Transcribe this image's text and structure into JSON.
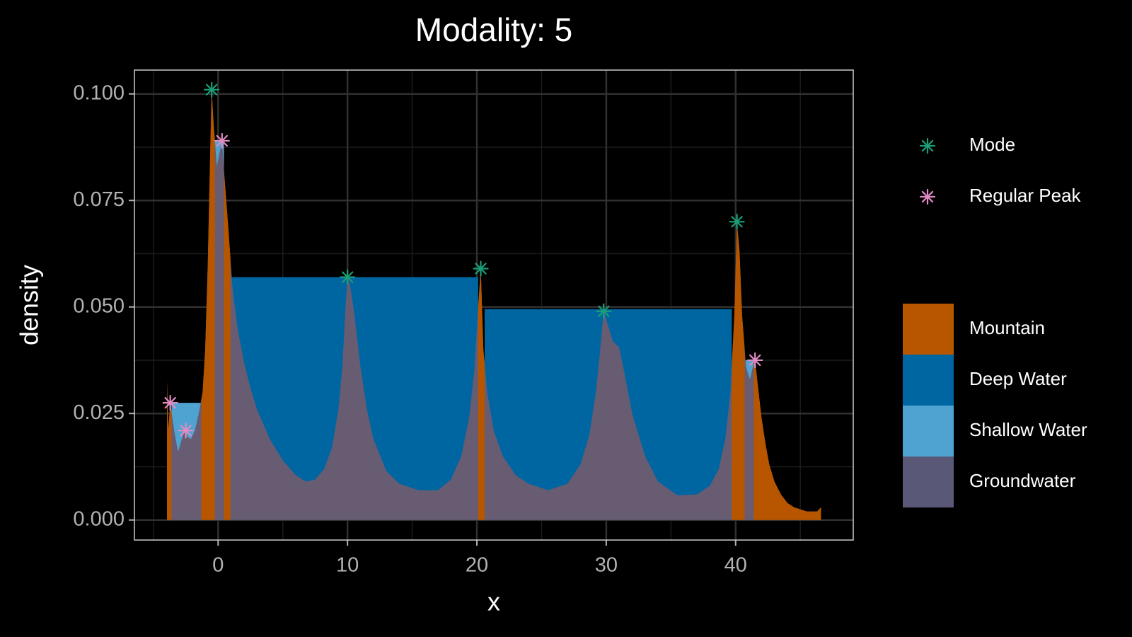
{
  "chart_data": {
    "type": "area",
    "title": "Modality: 5",
    "x_label": "x",
    "y_label": "density",
    "xlim": [
      -6.47,
      49.09
    ],
    "ylim": [
      -0.0047,
      0.1056
    ],
    "xticks": [
      0,
      10,
      20,
      30,
      40
    ],
    "yticks": [
      {
        "value": 0,
        "label": "0.000"
      },
      {
        "value": 0.025,
        "label": "0.025"
      },
      {
        "value": 0.05,
        "label": "0.050"
      },
      {
        "value": 0.075,
        "label": "0.075"
      },
      {
        "value": 0.1,
        "label": "0.100"
      }
    ],
    "minor_xticks": [
      -5,
      5,
      15,
      25,
      35,
      45
    ],
    "minor_yticks": [
      0.0125,
      0.0375,
      0.0625,
      0.0875
    ],
    "grid": true,
    "x": [
      -3.95,
      -3.85,
      -3.7,
      -3.4,
      -3.1,
      -2.8,
      -2.6,
      -2.35,
      -2.1,
      -1.8,
      -1.5,
      -1.2,
      -1.0,
      -0.8,
      -0.6,
      -0.5,
      -0.35,
      -0.1,
      0.1,
      0.3,
      0.5,
      0.8,
      1.1,
      1.5,
      2,
      2.5,
      3,
      4,
      5,
      6,
      6.8,
      7.5,
      8.2,
      8.8,
      9.3,
      9.6,
      9.85,
      10,
      10.2,
      10.5,
      11,
      11.5,
      12,
      13,
      14,
      15.5,
      17,
      18,
      18.8,
      19.4,
      19.8,
      20.1,
      20.3,
      20.5,
      20.8,
      21.3,
      22,
      23,
      24,
      25.5,
      27,
      28,
      28.7,
      29.2,
      29.5,
      29.8,
      30.1,
      30.5,
      31,
      31.5,
      32,
      33,
      34,
      35.5,
      37,
      38,
      38.7,
      39.2,
      39.6,
      39.9,
      40.1,
      40.3,
      40.5,
      40.8,
      41.1,
      41.3,
      41.5,
      41.7,
      42,
      42.3,
      42.6,
      43,
      43.5,
      44,
      44.5,
      45,
      45.5,
      46,
      46.3,
      46.6
    ],
    "series": [
      {
        "name": "Groundwater",
        "color": "#675c72",
        "values": [
          0.0325,
          0.021,
          0.0275,
          0.021,
          0.016,
          0.019,
          0.021,
          0.0195,
          0.019,
          0.021,
          0.025,
          0.03,
          0.04,
          0.06,
          0.088,
          0.101,
          0.093,
          0.083,
          0.086,
          0.089,
          0.08,
          0.068,
          0.055,
          0.045,
          0.037,
          0.031,
          0.026,
          0.019,
          0.014,
          0.0105,
          0.009,
          0.0095,
          0.012,
          0.017,
          0.026,
          0.036,
          0.05,
          0.057,
          0.055,
          0.049,
          0.036,
          0.026,
          0.019,
          0.0115,
          0.0085,
          0.007,
          0.007,
          0.0095,
          0.015,
          0.024,
          0.035,
          0.05,
          0.059,
          0.04,
          0.03,
          0.021,
          0.015,
          0.0105,
          0.0085,
          0.007,
          0.0085,
          0.013,
          0.02,
          0.03,
          0.039,
          0.049,
          0.046,
          0.042,
          0.0405,
          0.033,
          0.025,
          0.015,
          0.009,
          0.0058,
          0.006,
          0.008,
          0.012,
          0.019,
          0.03,
          0.048,
          0.07,
          0.063,
          0.048,
          0.036,
          0.033,
          0.0355,
          0.0375,
          0.032,
          0.024,
          0.018,
          0.013,
          0.009,
          0.006,
          0.004,
          0.003,
          0.0025,
          0.002,
          0.002,
          0.002,
          0.003
        ],
        "legend_color": "#5a5877"
      }
    ],
    "regions": [
      {
        "name": "Mountain",
        "color": "#b85600",
        "spans": [
          [
            -3.95,
            -3.6
          ],
          [
            -1.3,
            -0.25
          ],
          [
            0.45,
            0.95
          ],
          [
            20.1,
            20.6
          ],
          [
            39.7,
            40.7
          ],
          [
            41.4,
            46.6
          ]
        ]
      },
      {
        "name": "Deep Water",
        "color": "#0066a1",
        "spans": [
          {
            "from": 0.95,
            "to": 20.1,
            "level": 0.057
          },
          {
            "from": 20.6,
            "to": 39.7,
            "level": 0.0495
          }
        ]
      },
      {
        "name": "Shallow Water",
        "color": "#4fa3d1",
        "spans": [
          {
            "from": -3.6,
            "to": -1.3,
            "level": 0.0275
          },
          {
            "from": -0.25,
            "to": 0.45,
            "level": 0.089
          },
          {
            "from": 40.7,
            "to": 41.4,
            "level": 0.0375
          }
        ]
      }
    ],
    "peaks": [
      {
        "name": "Mode",
        "color": "#1b9e77",
        "x": [
          -0.5,
          10,
          20.3,
          29.8,
          40.1
        ],
        "y": [
          0.101,
          0.057,
          0.059,
          0.049,
          0.07
        ]
      },
      {
        "name": "Regular Peak",
        "color": "#e08cc4",
        "x": [
          -3.7,
          -2.5,
          0.3,
          41.5
        ],
        "y": [
          0.0275,
          0.021,
          0.089,
          0.0375
        ]
      }
    ]
  }
}
